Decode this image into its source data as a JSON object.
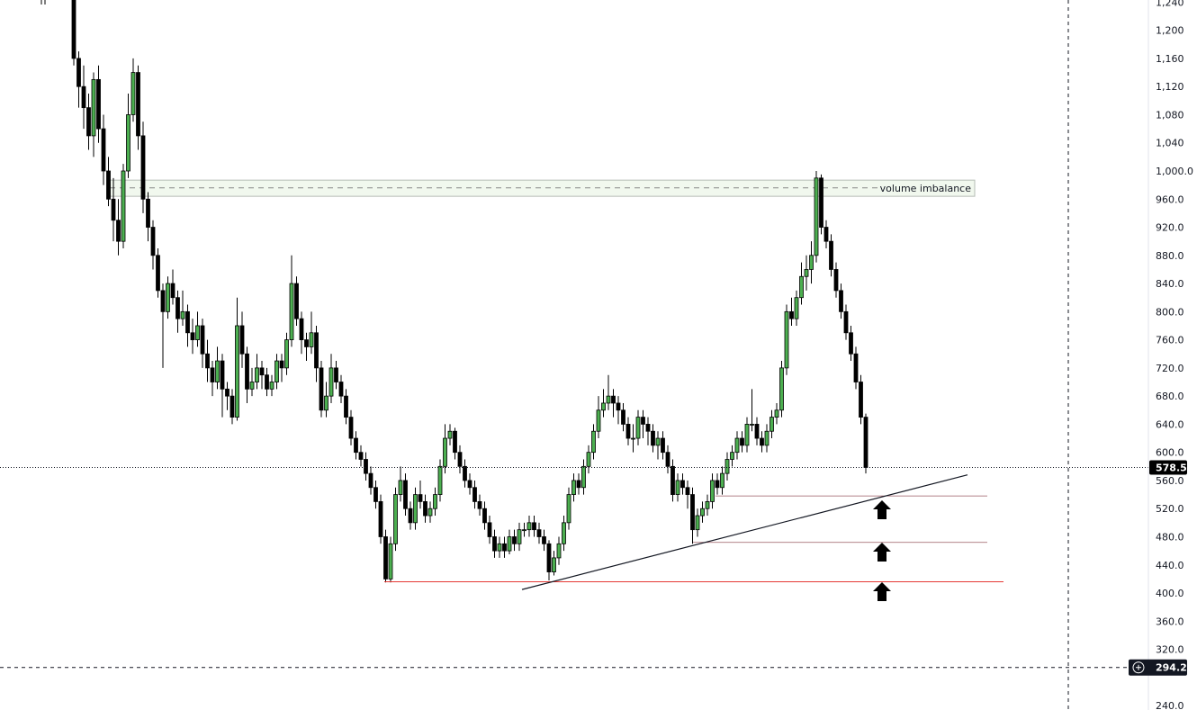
{
  "chart_data": {
    "type": "candlestick",
    "ylim": [
      240,
      1240
    ],
    "y_ticks": [
      "1,240",
      "1,200",
      "1,160",
      "1,120",
      "1,080",
      "1,040",
      "1,000.0",
      "960.0",
      "920.0",
      "880.0",
      "840.0",
      "800.0",
      "760.0",
      "720.0",
      "680.0",
      "640.0",
      "600.0",
      "560.0",
      "520.0",
      "480.0",
      "440.0",
      "400.0",
      "360.0",
      "320.0",
      "240.0"
    ],
    "y_tick_values": [
      1240,
      1200,
      1160,
      1120,
      1080,
      1040,
      1000,
      960,
      920,
      880,
      840,
      800,
      760,
      720,
      680,
      640,
      600,
      560,
      520,
      480,
      440,
      400,
      360,
      320,
      240
    ],
    "colors": {
      "up": "#4caf50",
      "down": "#000000",
      "support_line": "#e53935",
      "zone_fill": "#f1f8ee",
      "zone_border": "#b5bdb5"
    },
    "ohlc": [
      [
        1300,
        1300,
        1150,
        1160
      ],
      [
        1160,
        1170,
        1090,
        1120
      ],
      [
        1120,
        1150,
        1060,
        1090
      ],
      [
        1090,
        1110,
        1030,
        1050
      ],
      [
        1050,
        1140,
        1020,
        1130
      ],
      [
        1130,
        1150,
        1040,
        1060
      ],
      [
        1060,
        1080,
        980,
        1000
      ],
      [
        1000,
        1020,
        950,
        960
      ],
      [
        960,
        990,
        900,
        930
      ],
      [
        930,
        960,
        880,
        900
      ],
      [
        900,
        1010,
        890,
        1000
      ],
      [
        1000,
        1110,
        990,
        1080
      ],
      [
        1080,
        1160,
        1070,
        1140
      ],
      [
        1140,
        1150,
        1030,
        1050
      ],
      [
        1050,
        1070,
        940,
        960
      ],
      [
        960,
        970,
        900,
        920
      ],
      [
        920,
        930,
        860,
        880
      ],
      [
        880,
        890,
        820,
        830
      ],
      [
        830,
        840,
        720,
        800
      ],
      [
        800,
        850,
        790,
        840
      ],
      [
        840,
        860,
        810,
        820
      ],
      [
        820,
        830,
        770,
        790
      ],
      [
        790,
        830,
        780,
        800
      ],
      [
        800,
        810,
        750,
        770
      ],
      [
        770,
        790,
        740,
        760
      ],
      [
        760,
        800,
        750,
        780
      ],
      [
        780,
        790,
        720,
        740
      ],
      [
        740,
        760,
        700,
        720
      ],
      [
        720,
        730,
        680,
        700
      ],
      [
        700,
        750,
        690,
        730
      ],
      [
        730,
        740,
        650,
        690
      ],
      [
        690,
        700,
        660,
        680
      ],
      [
        680,
        690,
        640,
        650
      ],
      [
        650,
        820,
        645,
        780
      ],
      [
        780,
        800,
        720,
        740
      ],
      [
        740,
        750,
        670,
        690
      ],
      [
        690,
        720,
        680,
        700
      ],
      [
        700,
        740,
        690,
        720
      ],
      [
        720,
        730,
        690,
        710
      ],
      [
        710,
        720,
        680,
        690
      ],
      [
        690,
        710,
        680,
        700
      ],
      [
        700,
        740,
        690,
        730
      ],
      [
        730,
        740,
        700,
        720
      ],
      [
        720,
        770,
        710,
        760
      ],
      [
        760,
        880,
        750,
        840
      ],
      [
        840,
        850,
        780,
        790
      ],
      [
        790,
        800,
        740,
        760
      ],
      [
        760,
        770,
        730,
        750
      ],
      [
        750,
        800,
        740,
        770
      ],
      [
        770,
        780,
        700,
        720
      ],
      [
        720,
        730,
        650,
        660
      ],
      [
        660,
        700,
        650,
        680
      ],
      [
        680,
        740,
        670,
        720
      ],
      [
        720,
        730,
        690,
        700
      ],
      [
        700,
        710,
        670,
        680
      ],
      [
        680,
        690,
        640,
        650
      ],
      [
        650,
        660,
        610,
        620
      ],
      [
        620,
        630,
        590,
        600
      ],
      [
        600,
        610,
        580,
        590
      ],
      [
        590,
        600,
        560,
        570
      ],
      [
        570,
        580,
        540,
        550
      ],
      [
        550,
        560,
        520,
        530
      ],
      [
        530,
        540,
        470,
        480
      ],
      [
        480,
        490,
        415,
        420
      ],
      [
        420,
        480,
        415,
        470
      ],
      [
        470,
        550,
        460,
        540
      ],
      [
        540,
        580,
        530,
        560
      ],
      [
        560,
        570,
        510,
        520
      ],
      [
        520,
        530,
        490,
        500
      ],
      [
        500,
        550,
        490,
        540
      ],
      [
        540,
        560,
        520,
        530
      ],
      [
        530,
        540,
        500,
        510
      ],
      [
        510,
        530,
        500,
        520
      ],
      [
        520,
        550,
        510,
        540
      ],
      [
        540,
        590,
        530,
        580
      ],
      [
        580,
        640,
        570,
        620
      ],
      [
        620,
        640,
        610,
        630
      ],
      [
        630,
        635,
        590,
        600
      ],
      [
        600,
        610,
        570,
        580
      ],
      [
        580,
        590,
        550,
        560
      ],
      [
        560,
        570,
        540,
        550
      ],
      [
        550,
        560,
        520,
        530
      ],
      [
        530,
        540,
        510,
        520
      ],
      [
        520,
        530,
        490,
        500
      ],
      [
        500,
        510,
        470,
        480
      ],
      [
        480,
        490,
        450,
        460
      ],
      [
        460,
        480,
        450,
        470
      ],
      [
        470,
        480,
        450,
        460
      ],
      [
        460,
        490,
        455,
        480
      ],
      [
        480,
        490,
        460,
        470
      ],
      [
        470,
        500,
        460,
        490
      ],
      [
        490,
        500,
        480,
        490
      ],
      [
        490,
        510,
        480,
        500
      ],
      [
        500,
        510,
        480,
        490
      ],
      [
        490,
        500,
        470,
        480
      ],
      [
        480,
        490,
        460,
        470
      ],
      [
        470,
        475,
        418,
        430
      ],
      [
        430,
        460,
        425,
        450
      ],
      [
        450,
        480,
        440,
        470
      ],
      [
        470,
        510,
        460,
        500
      ],
      [
        500,
        550,
        490,
        540
      ],
      [
        540,
        570,
        530,
        560
      ],
      [
        560,
        570,
        540,
        550
      ],
      [
        550,
        590,
        540,
        580
      ],
      [
        580,
        610,
        570,
        600
      ],
      [
        600,
        640,
        590,
        630
      ],
      [
        630,
        680,
        620,
        660
      ],
      [
        660,
        690,
        650,
        670
      ],
      [
        670,
        710,
        660,
        680
      ],
      [
        680,
        690,
        650,
        670
      ],
      [
        670,
        680,
        640,
        660
      ],
      [
        660,
        670,
        630,
        640
      ],
      [
        640,
        650,
        610,
        620
      ],
      [
        620,
        640,
        600,
        620
      ],
      [
        620,
        660,
        610,
        650
      ],
      [
        650,
        660,
        620,
        640
      ],
      [
        640,
        650,
        610,
        630
      ],
      [
        630,
        640,
        600,
        610
      ],
      [
        610,
        630,
        590,
        620
      ],
      [
        620,
        630,
        590,
        600
      ],
      [
        600,
        610,
        570,
        580
      ],
      [
        580,
        590,
        530,
        540
      ],
      [
        540,
        570,
        530,
        560
      ],
      [
        560,
        570,
        540,
        550
      ],
      [
        550,
        560,
        520,
        540
      ],
      [
        540,
        550,
        470,
        490
      ],
      [
        490,
        520,
        480,
        510
      ],
      [
        510,
        530,
        500,
        520
      ],
      [
        520,
        540,
        510,
        530
      ],
      [
        530,
        570,
        520,
        560
      ],
      [
        560,
        570,
        540,
        550
      ],
      [
        550,
        580,
        540,
        570
      ],
      [
        570,
        600,
        560,
        590
      ],
      [
        590,
        610,
        580,
        600
      ],
      [
        600,
        630,
        590,
        620
      ],
      [
        620,
        630,
        600,
        610
      ],
      [
        610,
        650,
        600,
        640
      ],
      [
        640,
        690,
        630,
        640
      ],
      [
        640,
        650,
        610,
        620
      ],
      [
        620,
        630,
        600,
        610
      ],
      [
        610,
        640,
        600,
        630
      ],
      [
        630,
        660,
        620,
        650
      ],
      [
        650,
        670,
        640,
        660
      ],
      [
        660,
        730,
        650,
        720
      ],
      [
        720,
        810,
        710,
        800
      ],
      [
        800,
        820,
        780,
        790
      ],
      [
        790,
        830,
        780,
        820
      ],
      [
        820,
        870,
        810,
        850
      ],
      [
        850,
        880,
        830,
        860
      ],
      [
        860,
        900,
        840,
        880
      ],
      [
        880,
        1000,
        870,
        990
      ],
      [
        990,
        995,
        910,
        920
      ],
      [
        920,
        930,
        890,
        900
      ],
      [
        900,
        910,
        850,
        860
      ],
      [
        860,
        870,
        820,
        830
      ],
      [
        830,
        840,
        790,
        800
      ],
      [
        800,
        810,
        760,
        770
      ],
      [
        770,
        780,
        730,
        740
      ],
      [
        740,
        750,
        690,
        700
      ],
      [
        700,
        710,
        640,
        650
      ],
      [
        650,
        655,
        570,
        578.5
      ]
    ],
    "annotations": {
      "zone": {
        "label": "volume imbalance",
        "top": 987,
        "bottom": 964,
        "mid": 976
      },
      "last_price": {
        "value": 578.5,
        "label": "578.5"
      },
      "crosshair_price": {
        "value": 294.2,
        "label": "294.2"
      },
      "support_levels": [
        538,
        472,
        416
      ],
      "trendline": {
        "from": 405,
        "to": 568
      },
      "arrows": [
        "arrow-up-icon",
        "arrow-up-icon",
        "arrow-up-icon"
      ]
    }
  }
}
